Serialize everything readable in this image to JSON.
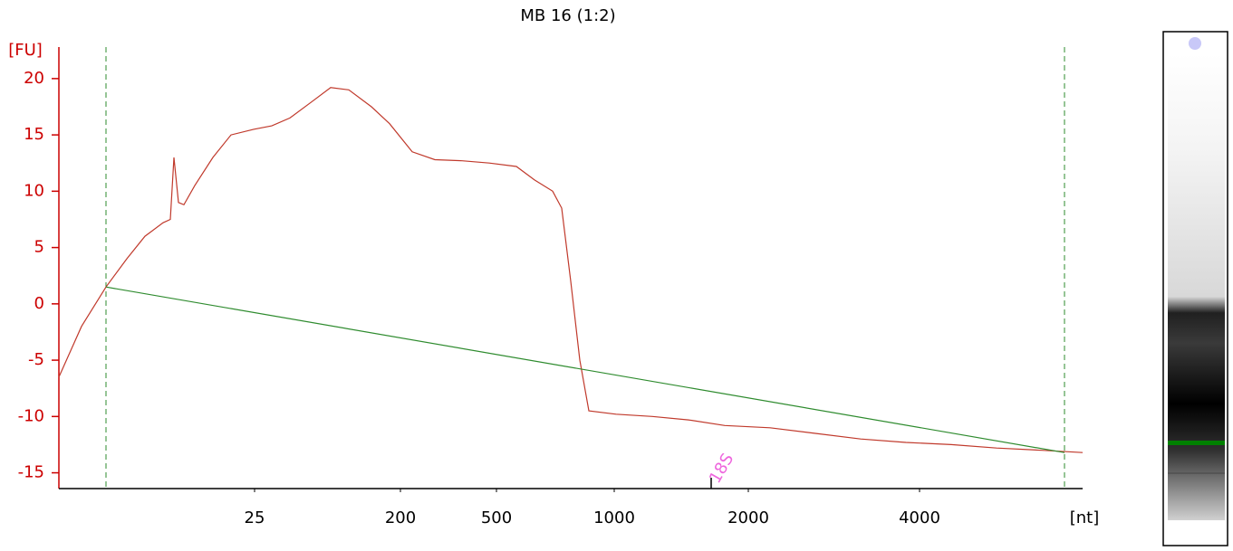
{
  "chart_data": {
    "type": "line",
    "title": "MB 16 (1:2)",
    "y_label": "[FU]",
    "x_label": "[nt]",
    "xlim": [
      0,
      1130
    ],
    "ylim": [
      -16.4,
      22.8
    ],
    "yticks": [
      -15,
      -10,
      -5,
      0,
      5,
      10,
      15,
      20
    ],
    "xticks": [
      {
        "value": 216,
        "label": "25"
      },
      {
        "value": 377,
        "label": "200"
      },
      {
        "value": 483,
        "label": "500"
      },
      {
        "value": 613,
        "label": "1000"
      },
      {
        "value": 761,
        "label": "2000"
      },
      {
        "value": 950,
        "label": "4000"
      }
    ],
    "markers": [
      52,
      1110
    ],
    "annotations": [
      {
        "text": "18S",
        "x": 720
      }
    ],
    "series": [
      {
        "color": "#c0392b",
        "x": [
          0,
          25,
          52,
          75,
          95,
          115,
          123,
          127,
          132,
          138,
          150,
          170,
          190,
          215,
          235,
          255,
          280,
          300,
          320,
          345,
          365,
          390,
          415,
          445,
          475,
          505,
          525,
          545,
          555,
          565,
          575,
          585,
          615,
          655,
          695,
          735,
          785,
          835,
          885,
          935,
          985,
          1035,
          1085,
          1130
        ],
        "values": [
          -6.5,
          -2,
          1.5,
          4,
          6,
          7.2,
          7.5,
          13,
          9,
          8.8,
          10.5,
          13,
          15,
          15.5,
          15.8,
          16.5,
          18,
          19.2,
          19,
          17.5,
          16,
          13.5,
          12.8,
          12.7,
          12.5,
          12.2,
          11,
          10,
          8.5,
          2,
          -5,
          -9.5,
          -9.8,
          -10,
          -10.3,
          -10.8,
          -11,
          -11.5,
          -12,
          -12.3,
          -12.5,
          -12.8,
          -13,
          -13.2
        ]
      },
      {
        "color": "#2e8b2e",
        "x": [
          52,
          1110
        ],
        "values": [
          1.5,
          -13.2
        ]
      }
    ]
  }
}
